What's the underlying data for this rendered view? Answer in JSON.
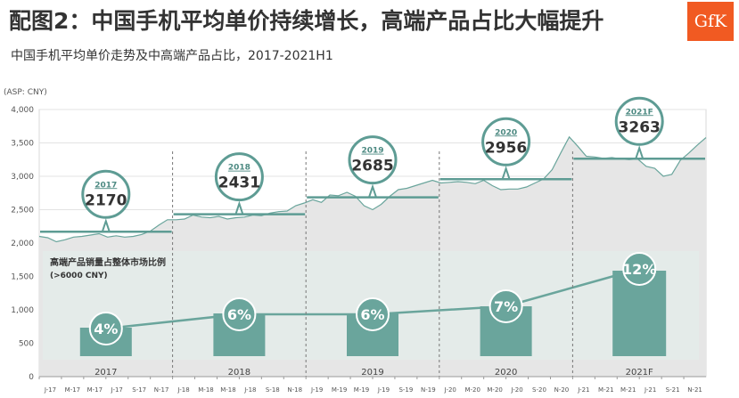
{
  "title": "配图2：中国手机平均单价持续增长，高端产品占比大幅提升",
  "subtitle": "中国手机平均单价走势及中高端产品占比，2017-2021H1",
  "logo_text": "GfK",
  "chart_data": {
    "type": "line",
    "yunit": "(ASP: CNY)",
    "ylim": [
      0,
      4000
    ],
    "yticks": [
      "4,000",
      "3,500",
      "3,000",
      "2,500",
      "2,000",
      "1,500",
      "1,000",
      "500",
      "0"
    ],
    "x": [
      "J-17",
      "M-17",
      "M-17",
      "J-17",
      "S-17",
      "N-17",
      "J-18",
      "M-18",
      "M-18",
      "J-18",
      "S-18",
      "N-18",
      "J-19",
      "M-19",
      "M-19",
      "J-19",
      "S-19",
      "N-19",
      "J-20",
      "M-20",
      "M-20",
      "J-20",
      "S-20",
      "N-20",
      "J-21",
      "M-21",
      "M-21",
      "J-21",
      "S-21",
      "N-21"
    ],
    "asp_series": {
      "name": "ASP",
      "values": [
        2100,
        2080,
        2020,
        2050,
        2090,
        2100,
        2120,
        2140,
        2090,
        2110,
        2090,
        2100,
        2130,
        2180,
        2270,
        2350,
        2350,
        2360,
        2420,
        2390,
        2380,
        2400,
        2360,
        2380,
        2390,
        2420,
        2410,
        2450,
        2470,
        2480,
        2560,
        2600,
        2650,
        2610,
        2720,
        2710,
        2760,
        2700,
        2560,
        2500,
        2580,
        2700,
        2800,
        2820,
        2860,
        2900,
        2940,
        2900,
        2910,
        2920,
        2910,
        2890,
        2940,
        2860,
        2800,
        2810,
        2810,
        2840,
        2900,
        2960,
        3100,
        3350,
        3590,
        3450,
        3300,
        3290,
        3270,
        3280,
        3260,
        3250,
        3260,
        3150,
        3120,
        3000,
        3030,
        3240,
        3350,
        3470,
        3580
      ],
      "area_fill": "#e6e6e6",
      "line_color": "#6aa59c"
    },
    "annual_avg": [
      {
        "year": "2017",
        "label": "2017",
        "value": 2170,
        "display": "2170"
      },
      {
        "year": "2018",
        "label": "2018",
        "value": 2431,
        "display": "2431"
      },
      {
        "year": "2019",
        "label": "2019",
        "value": 2685,
        "display": "2685"
      },
      {
        "year": "2020",
        "label": "2020",
        "value": 2956,
        "display": "2956"
      },
      {
        "year": "2021F",
        "label": "2021F",
        "value": 3263,
        "display": "3263"
      }
    ],
    "high_end_share": {
      "title": "高端产品销量占整体市场比例",
      "subtitle": "(>6000 CNY)",
      "categories": [
        "2017",
        "2018",
        "2019",
        "2020",
        "2021F"
      ],
      "values": [
        4,
        6,
        6,
        7,
        12
      ],
      "labels": [
        "4%",
        "6%",
        "6%",
        "7%",
        "12%"
      ],
      "bar_color": "#6aa59c"
    },
    "colors": {
      "accent": "#5e9c94",
      "panel": "#e3ebe9",
      "avg_line": "#5e9c94"
    }
  }
}
